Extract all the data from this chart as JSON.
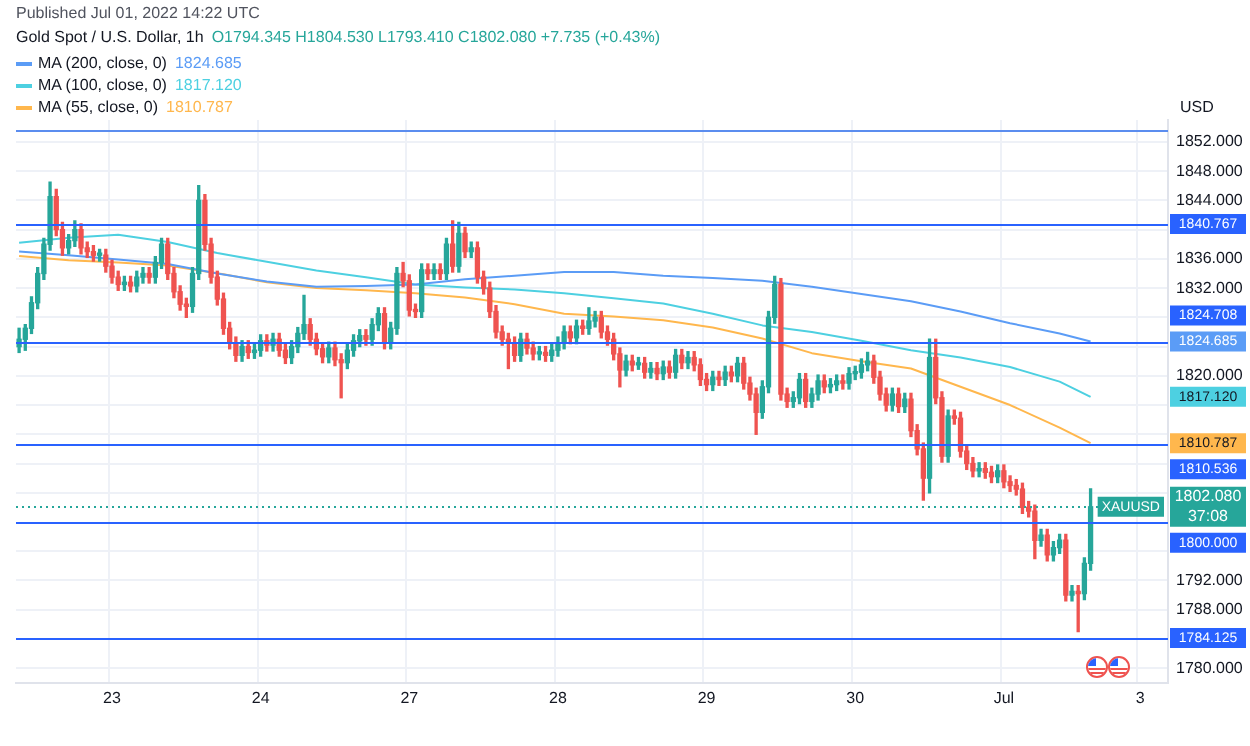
{
  "chart_data": {
    "type": "candlestick",
    "title": "Gold Spot / U.S. Dollar, 1h",
    "subtitle": "Published Jul 01, 2022 14:22 UTC",
    "ylabel": "USD",
    "annotations": [
      "O1794.345 H1804.530 L1793.410 C1802.080 +7.735 (+0.43%)",
      {
        "text": "XAUUSD",
        "y": 1802.08
      },
      {
        "text": "37:08",
        "y": 1802.08
      },
      "1824.685",
      "1817.120",
      "1810.787"
    ],
    "categories": [
      null,
      null,
      null,
      null,
      null,
      null,
      null,
      null,
      null,
      null,
      null,
      null,
      null,
      null,
      null,
      "23",
      null,
      null,
      null,
      null,
      null,
      null,
      null,
      null,
      null,
      null,
      null,
      null,
      null,
      null,
      null,
      null,
      null,
      null,
      null,
      null,
      null,
      null,
      null,
      "24",
      null,
      null,
      null,
      null,
      null,
      null,
      null,
      null,
      null,
      null,
      null,
      null,
      null,
      null,
      null,
      null,
      null,
      null,
      null,
      null,
      null,
      null,
      null,
      "27",
      null,
      null,
      null,
      null,
      null,
      null,
      null,
      null,
      null,
      null,
      null,
      null,
      null,
      null,
      null,
      null,
      null,
      null,
      null,
      null,
      null,
      null,
      null,
      "28",
      null,
      null,
      null,
      null,
      null,
      null,
      null,
      null,
      null,
      null,
      null,
      null,
      null,
      null,
      null,
      null,
      null,
      null,
      null,
      null,
      null,
      null,
      null,
      "29",
      null,
      null,
      null,
      null,
      null,
      null,
      null,
      null,
      null,
      null,
      null,
      null,
      null,
      null,
      null,
      null,
      null,
      null,
      null,
      null,
      null,
      null,
      null,
      "30",
      null,
      null,
      null,
      null,
      null,
      null,
      null,
      null,
      null,
      null,
      null,
      null,
      null,
      null,
      null,
      null,
      null,
      null,
      null,
      null,
      null,
      null,
      null,
      "Jul",
      null,
      null,
      null,
      null,
      null,
      null,
      null,
      null,
      null,
      null,
      null,
      null,
      null,
      null,
      null,
      null,
      null,
      null,
      null,
      null,
      null,
      "3",
      null,
      null,
      null,
      null
    ],
    "colors": [
      "#26a69a",
      "#26a69a",
      "#26a69a",
      "#26a69a",
      "#26a69a",
      "#26a69a",
      "#ef5350",
      "#ef5350",
      "#26a69a",
      "#26a69a",
      "#ef5350",
      "#ef5350",
      "#ef5350",
      "#26a69a",
      "#ef5350",
      "#ef5350",
      "#ef5350",
      "#26a69a",
      "#ef5350",
      "#26a69a",
      "#26a69a",
      "#ef5350",
      "#26a69a",
      "#26a69a",
      "#ef5350",
      "#ef5350",
      "#ef5350",
      "#ef5350",
      "#26a69a",
      "#26a69a",
      "#ef5350",
      "#ef5350",
      "#ef5350",
      "#ef5350",
      "#ef5350",
      "#ef5350",
      "#26a69a",
      "#ef5350",
      "#26a69a",
      "#26a69a",
      "#ef5350",
      "#26a69a",
      "#ef5350",
      "#ef5350",
      "#26a69a",
      "#26a69a",
      "#26a69a",
      "#ef5350",
      "#ef5350",
      "#ef5350",
      "#26a69a",
      "#ef5350",
      "#ef5350",
      "#26a69a",
      "#26a69a",
      "#26a69a",
      "#ef5350",
      "#26a69a",
      "#26a69a",
      "#ef5350",
      "#26a69a",
      "#26a69a",
      "#ef5350",
      "#ef5350",
      "#ef5350",
      "#26a69a",
      "#ef5350",
      "#26a69a",
      "#ef5350",
      "#26a69a",
      "#ef5350",
      "#26a69a",
      "#ef5350",
      "#26a69a",
      "#ef5350",
      "#ef5350",
      "#ef5350",
      "#ef5350",
      "#ef5350",
      "#ef5350",
      "#ef5350",
      "#26a69a",
      "#ef5350",
      "#ef5350",
      "#26a69a",
      "#ef5350",
      "#26a69a",
      "#26a69a",
      "#26a69a",
      "#ef5350",
      "#26a69a",
      "#ef5350",
      "#26a69a",
      "#26a69a",
      "#ef5350",
      "#ef5350",
      "#ef5350",
      "#ef5350",
      "#26a69a",
      "#ef5350",
      "#26a69a",
      "#ef5350",
      "#26a69a",
      "#ef5350",
      "#26a69a",
      "#ef5350",
      "#26a69a",
      "#ef5350",
      "#26a69a",
      "#ef5350",
      "#ef5350",
      "#ef5350",
      "#26a69a",
      "#ef5350",
      "#26a69a",
      "#ef5350",
      "#26a69a",
      "#ef5350",
      "#ef5350",
      "#ef5350",
      "#26a69a",
      "#26a69a",
      "#26a69a",
      "#ef5350",
      "#ef5350",
      "#26a69a",
      "#26a69a",
      "#ef5350",
      "#26a69a",
      "#26a69a",
      "#ef5350",
      "#26a69a",
      "#26a69a",
      "#ef5350",
      "#26a69a",
      "#26a69a",
      "#26a69a",
      "#26a69a",
      "#ef5350",
      "#ef5350",
      "#ef5350",
      "#26a69a",
      "#ef5350",
      "#26a69a",
      "#ef5350",
      "#ef5350",
      "#ef5350",
      "#26a69a",
      "#ef5350",
      "#ef5350",
      "#26a69a",
      "#ef5350",
      "#ef5350",
      "#ef5350",
      "#ef5350",
      "#26a69a",
      "#ef5350",
      "#ef5350",
      "#26a69a",
      "#ef5350",
      "#ef5350",
      "#ef5350",
      "#ef5350",
      "#ef5350",
      "#ef5350",
      "#26a69a",
      "#ef5350",
      "#26a69a",
      "#26a69a",
      "#ef5350",
      "#26a69a",
      "#ef5350",
      "#26a69a",
      "#26a69a",
      null,
      null,
      null,
      null,
      null,
      null,
      null,
      null,
      null,
      null,
      null,
      null
    ],
    "ohlc": [
      [
        1824,
        1826.5,
        1823.2,
        1825
      ],
      [
        1825,
        1827,
        1823.5,
        1826.5
      ],
      [
        1826.5,
        1830.8,
        1825.8,
        1830
      ],
      [
        1830,
        1834.8,
        1829.2,
        1834
      ],
      [
        1834,
        1838.8,
        1833.2,
        1838
      ],
      [
        1838,
        1846.5,
        1837.2,
        1844.5
      ],
      [
        1844.5,
        1845.5,
        1839.2,
        1840
      ],
      [
        1840,
        1841,
        1836.5,
        1837.5
      ],
      [
        1837.5,
        1839.3,
        1836.7,
        1838.5
      ],
      [
        1838.5,
        1841.2,
        1837.7,
        1840
      ],
      [
        1840,
        1840.8,
        1836.7,
        1837.5
      ],
      [
        1837.5,
        1838.3,
        1836.2,
        1837
      ],
      [
        1837,
        1837.8,
        1835.7,
        1836.5
      ],
      [
        1836.5,
        1837.3,
        1835.7,
        1836.5
      ],
      [
        1836.5,
        1837.3,
        1834.2,
        1835
      ],
      [
        1835,
        1835.8,
        1832.7,
        1833.5
      ],
      [
        1833.5,
        1834.3,
        1831.7,
        1832.5
      ],
      [
        1832.5,
        1833.6,
        1831.7,
        1832.8
      ],
      [
        1832.8,
        1833.6,
        1831.5,
        1832.3
      ],
      [
        1832.3,
        1834.3,
        1831.5,
        1833.5
      ],
      [
        1833.5,
        1834.8,
        1832.7,
        1834
      ],
      [
        1834,
        1834.8,
        1832.7,
        1833.5
      ],
      [
        1833.5,
        1836.3,
        1832.7,
        1835.5
      ],
      [
        1835.5,
        1838.8,
        1834.7,
        1838
      ],
      [
        1838,
        1838.8,
        1833.2,
        1834
      ],
      [
        1834,
        1834.8,
        1830.7,
        1831.5
      ],
      [
        1831.5,
        1832.3,
        1829,
        1829.8
      ],
      [
        1829.8,
        1830.6,
        1828,
        1829.5
      ],
      [
        1829.5,
        1834.8,
        1828.7,
        1834
      ],
      [
        1834,
        1846,
        1833.2,
        1844
      ],
      [
        1844,
        1844.8,
        1837.2,
        1838
      ],
      [
        1838,
        1838.8,
        1832.7,
        1833.5
      ],
      [
        1833.5,
        1834.3,
        1829.7,
        1830.5
      ],
      [
        1830.5,
        1831.3,
        1825.7,
        1826.5
      ],
      [
        1826.5,
        1827.3,
        1823.7,
        1824.5
      ],
      [
        1824.5,
        1825.3,
        1822,
        1822.8
      ],
      [
        1822.8,
        1824.8,
        1822,
        1824
      ],
      [
        1824,
        1824.8,
        1822.4,
        1823.2
      ],
      [
        1823.2,
        1824.3,
        1822.4,
        1823.5
      ],
      [
        1823.5,
        1825.6,
        1822.7,
        1824.8
      ],
      [
        1824.8,
        1825.6,
        1823.4,
        1824.2
      ],
      [
        1824.2,
        1825.8,
        1823.4,
        1825
      ],
      [
        1825,
        1825.8,
        1822.7,
        1823.5
      ],
      [
        1823.5,
        1824.3,
        1821.7,
        1822.5
      ],
      [
        1822.5,
        1824.8,
        1821.7,
        1824
      ],
      [
        1824,
        1826.6,
        1823.2,
        1825.8
      ],
      [
        1825.8,
        1831,
        1825,
        1827
      ],
      [
        1827,
        1827.8,
        1824.2,
        1825
      ],
      [
        1825,
        1825.8,
        1822.9,
        1823.7
      ],
      [
        1823.7,
        1824.5,
        1821.8,
        1822.6
      ],
      [
        1822.6,
        1824.6,
        1821.8,
        1823.8
      ],
      [
        1823.8,
        1824.6,
        1821.4,
        1822.2
      ],
      [
        1822.2,
        1823,
        1817,
        1821.8
      ],
      [
        1821.8,
        1824.3,
        1821,
        1823.5
      ],
      [
        1823.5,
        1825.6,
        1822.7,
        1824.8
      ],
      [
        1824.8,
        1826.3,
        1824,
        1825.5
      ],
      [
        1825.5,
        1826.3,
        1824.2,
        1825
      ],
      [
        1825,
        1827.8,
        1824.2,
        1827
      ],
      [
        1827,
        1829.3,
        1826.2,
        1828.5
      ],
      [
        1828.5,
        1829.3,
        1823.7,
        1824.5
      ],
      [
        1824.5,
        1827.3,
        1823.7,
        1826.5
      ],
      [
        1826.5,
        1834.8,
        1825.7,
        1834
      ],
      [
        1834,
        1835.5,
        1832.2,
        1833
      ],
      [
        1833,
        1833.8,
        1828.2,
        1829
      ],
      [
        1829,
        1829.8,
        1828,
        1828.8
      ],
      [
        1828.8,
        1835.3,
        1828,
        1834.5
      ],
      [
        1834.5,
        1835.3,
        1833.2,
        1834
      ],
      [
        1834,
        1835.3,
        1833.2,
        1834.5
      ],
      [
        1834.5,
        1835.3,
        1833.2,
        1834
      ],
      [
        1834,
        1838.8,
        1833.2,
        1838
      ],
      [
        1838,
        1841.2,
        1834.2,
        1835
      ],
      [
        1835,
        1841,
        1834.2,
        1839.5
      ],
      [
        1839.5,
        1840.3,
        1836.2,
        1837
      ],
      [
        1837,
        1838.3,
        1836.2,
        1837.5
      ],
      [
        1837.5,
        1838.3,
        1832.7,
        1833.5
      ],
      [
        1833.5,
        1834.3,
        1831.2,
        1832
      ],
      [
        1832,
        1832.8,
        1828,
        1828.8
      ],
      [
        1828.8,
        1829.6,
        1825.2,
        1826
      ],
      [
        1826,
        1826.8,
        1824.2,
        1825
      ],
      [
        1825,
        1825.8,
        1821,
        1824.5
      ],
      [
        1824.5,
        1825.3,
        1822,
        1822.8
      ],
      [
        1822.8,
        1825.8,
        1822,
        1825
      ],
      [
        1825,
        1825.8,
        1823,
        1823.8
      ],
      [
        1823.8,
        1824.6,
        1822.2,
        1823
      ],
      [
        1823,
        1824,
        1822.2,
        1823.2
      ],
      [
        1823.2,
        1824,
        1822,
        1822.8
      ],
      [
        1822.8,
        1824.3,
        1822,
        1823.5
      ],
      [
        1823.5,
        1825.3,
        1822.7,
        1824.5
      ],
      [
        1824.5,
        1826.8,
        1823.7,
        1826
      ],
      [
        1826,
        1826.8,
        1824.4,
        1825.2
      ],
      [
        1825.2,
        1827.6,
        1824.4,
        1826.8
      ],
      [
        1826.8,
        1827.6,
        1825.7,
        1826.5
      ],
      [
        1826.5,
        1829.3,
        1825.7,
        1827.5
      ],
      [
        1827.5,
        1828.8,
        1826.7,
        1828
      ],
      [
        1828,
        1828.8,
        1825.2,
        1826
      ],
      [
        1826,
        1826.8,
        1824.2,
        1825
      ],
      [
        1825,
        1825.8,
        1822.2,
        1823
      ],
      [
        1823,
        1823.8,
        1818.5,
        1820.8
      ],
      [
        1820.8,
        1822.8,
        1820,
        1822
      ],
      [
        1822,
        1822.8,
        1820.7,
        1821.5
      ],
      [
        1821.5,
        1822.5,
        1820.9,
        1821.7
      ],
      [
        1821.7,
        1822.5,
        1819.7,
        1820.5
      ],
      [
        1820.5,
        1821.8,
        1819.7,
        1821
      ],
      [
        1821,
        1821.8,
        1819.5,
        1820.3
      ],
      [
        1820.3,
        1822,
        1819.5,
        1821.2
      ],
      [
        1821.2,
        1822,
        1819.7,
        1820.5
      ],
      [
        1820.5,
        1823.6,
        1819.7,
        1822.8
      ],
      [
        1822.8,
        1823.6,
        1821,
        1821.8
      ],
      [
        1821.8,
        1823.3,
        1821,
        1822.5
      ],
      [
        1822.5,
        1823.3,
        1820.7,
        1821.5
      ],
      [
        1821.5,
        1822.3,
        1818.7,
        1819.5
      ],
      [
        1819.5,
        1820.3,
        1818,
        1818.8
      ],
      [
        1818.8,
        1820.6,
        1818,
        1819.8
      ],
      [
        1819.8,
        1820.6,
        1818.7,
        1819.5
      ],
      [
        1819.5,
        1821.3,
        1818.7,
        1820.5
      ],
      [
        1820.5,
        1821.3,
        1819.2,
        1820
      ],
      [
        1820,
        1822.5,
        1819.2,
        1821.7
      ],
      [
        1821.7,
        1822.5,
        1818.2,
        1819
      ],
      [
        1819,
        1819.8,
        1816.7,
        1817.5
      ],
      [
        1817.5,
        1818.3,
        1812,
        1815
      ],
      [
        1815,
        1819.3,
        1814.2,
        1818.5
      ],
      [
        1818.5,
        1828.8,
        1817.7,
        1828
      ],
      [
        1828,
        1833.6,
        1827.2,
        1832.5
      ],
      [
        1832.5,
        1833.3,
        1816.7,
        1817.5
      ],
      [
        1817.5,
        1818.3,
        1815.7,
        1816.5
      ],
      [
        1816.5,
        1817.8,
        1815.7,
        1817
      ],
      [
        1817,
        1820.3,
        1816.2,
        1819.5
      ],
      [
        1819.5,
        1820.3,
        1815.7,
        1816.5
      ],
      [
        1816.5,
        1818.3,
        1815.7,
        1817.5
      ],
      [
        1817.5,
        1820.1,
        1816.7,
        1819.3
      ],
      [
        1819.3,
        1820.1,
        1817.7,
        1818.5
      ],
      [
        1818.5,
        1819.6,
        1817.7,
        1818.8
      ],
      [
        1818.8,
        1820.1,
        1818,
        1819.3
      ],
      [
        1819.3,
        1820.1,
        1818.2,
        1819
      ],
      [
        1819,
        1821.1,
        1818.2,
        1820.3
      ],
      [
        1820.3,
        1821.3,
        1819.5,
        1820.5
      ],
      [
        1820.5,
        1822.3,
        1819.7,
        1821.5
      ],
      [
        1821.5,
        1823.2,
        1820.7,
        1822
      ],
      [
        1822,
        1822.8,
        1819,
        1819.8
      ],
      [
        1819.8,
        1820.6,
        1816.7,
        1817.5
      ],
      [
        1817.5,
        1818.3,
        1815.2,
        1816
      ],
      [
        1816,
        1818.3,
        1815.2,
        1817.5
      ],
      [
        1817.5,
        1818.3,
        1815,
        1815.8
      ],
      [
        1815.8,
        1817.6,
        1815,
        1816.8
      ],
      [
        1816.8,
        1817.6,
        1811.7,
        1812.5
      ],
      [
        1812.5,
        1813.3,
        1809.2,
        1810
      ],
      [
        1810,
        1810.8,
        1803,
        1806
      ],
      [
        1806,
        1825,
        1804,
        1822.5
      ],
      [
        1822.5,
        1825,
        1816.2,
        1817
      ],
      [
        1817,
        1817.8,
        1808.2,
        1809
      ],
      [
        1809,
        1815.3,
        1808.2,
        1814.5
      ],
      [
        1814.5,
        1815.3,
        1813.4,
        1814.2
      ],
      [
        1814.2,
        1815,
        1808.9,
        1809.7
      ],
      [
        1809.7,
        1810.5,
        1807.2,
        1808
      ],
      [
        1808,
        1808.8,
        1806.2,
        1807
      ],
      [
        1807,
        1808.1,
        1806.2,
        1807.3
      ],
      [
        1807.3,
        1808.1,
        1806,
        1806.8
      ],
      [
        1806.8,
        1807.6,
        1805.4,
        1806.2
      ],
      [
        1806.2,
        1807.8,
        1805.4,
        1807
      ],
      [
        1807,
        1807.8,
        1804.7,
        1805.5
      ],
      [
        1805.5,
        1806.3,
        1804.2,
        1805
      ],
      [
        1805,
        1805.8,
        1803.7,
        1804.5
      ],
      [
        1804.5,
        1805.3,
        1801.2,
        1802
      ],
      [
        1802,
        1802.8,
        1800.7,
        1801.5
      ],
      [
        1801.5,
        1802.3,
        1795,
        1797.5
      ],
      [
        1797.5,
        1799,
        1796.7,
        1798.2
      ],
      [
        1798.2,
        1799,
        1794.7,
        1795.5
      ],
      [
        1795.5,
        1797.3,
        1794.7,
        1796.5
      ],
      [
        1796.5,
        1798.3,
        1795.7,
        1797.5
      ],
      [
        1797.5,
        1798.3,
        1789.2,
        1790
      ],
      [
        1790,
        1791.3,
        1789.2,
        1790.5
      ],
      [
        1790.5,
        1791.3,
        1785,
        1790.2
      ],
      [
        1790.2,
        1795.1,
        1789.4,
        1794.345
      ],
      [
        1794.345,
        1804.53,
        1793.41,
        1802.08
      ],
      null,
      null,
      null,
      null,
      null,
      null,
      null,
      null,
      null,
      null,
      null,
      null
    ],
    "series": [
      {
        "type": "line",
        "name": "MA (200, close, 0)",
        "color": "#5b9cf6",
        "values": [
          1837,
          null,
          null,
          null,
          null,
          null,
          null,
          null,
          1836.5,
          null,
          null,
          null,
          null,
          null,
          null,
          null,
          1835.9,
          null,
          null,
          null,
          null,
          null,
          null,
          null,
          1835.3,
          null,
          null,
          null,
          null,
          null,
          null,
          null,
          1834,
          null,
          null,
          null,
          null,
          null,
          null,
          null,
          1832.9,
          null,
          null,
          null,
          null,
          null,
          null,
          null,
          1832.2,
          null,
          null,
          null,
          null,
          null,
          null,
          null,
          1832.3,
          null,
          null,
          null,
          null,
          null,
          null,
          null,
          1832.5,
          null,
          null,
          null,
          null,
          null,
          null,
          null,
          1833.2,
          null,
          null,
          null,
          null,
          null,
          null,
          null,
          1833.7,
          null,
          null,
          null,
          null,
          null,
          null,
          null,
          1834.2,
          null,
          null,
          null,
          null,
          null,
          null,
          null,
          1834.2,
          null,
          null,
          null,
          null,
          null,
          null,
          null,
          1833.7,
          null,
          null,
          null,
          null,
          null,
          null,
          null,
          1833.4,
          null,
          null,
          null,
          null,
          null,
          null,
          null,
          1833,
          null,
          null,
          null,
          null,
          null,
          null,
          null,
          1832.2,
          null,
          null,
          null,
          null,
          null,
          null,
          null,
          1831.2,
          null,
          null,
          null,
          null,
          null,
          null,
          null,
          1830.2,
          null,
          null,
          null,
          null,
          null,
          null,
          null,
          1828.8,
          null,
          null,
          null,
          null,
          null,
          null,
          null,
          1827.2,
          null,
          null,
          null,
          null,
          null,
          null,
          null,
          1825.8,
          null,
          null,
          null,
          null,
          1824.685,
          null,
          null,
          null,
          null,
          null,
          null,
          null,
          null,
          null,
          null,
          null,
          null
        ]
      },
      {
        "type": "line",
        "name": "MA (100, close, 0)",
        "color": "#4dd0e1",
        "values": [
          1838.2,
          null,
          null,
          null,
          null,
          null,
          null,
          null,
          1838.9,
          null,
          null,
          null,
          null,
          null,
          null,
          null,
          1839.3,
          null,
          null,
          null,
          null,
          null,
          null,
          null,
          1838.3,
          null,
          null,
          null,
          null,
          null,
          null,
          null,
          1836.8,
          null,
          null,
          null,
          null,
          null,
          null,
          null,
          1835.6,
          null,
          null,
          null,
          null,
          null,
          null,
          null,
          1834.4,
          null,
          null,
          null,
          null,
          null,
          null,
          null,
          1833.5,
          null,
          null,
          null,
          null,
          null,
          null,
          null,
          1832.5,
          null,
          null,
          null,
          null,
          null,
          null,
          null,
          1832.1,
          null,
          null,
          null,
          null,
          null,
          null,
          null,
          1831.8,
          null,
          null,
          null,
          null,
          null,
          null,
          null,
          1831.3,
          null,
          null,
          null,
          null,
          null,
          null,
          null,
          1830.6,
          null,
          null,
          null,
          null,
          null,
          null,
          null,
          1829.9,
          null,
          null,
          null,
          null,
          null,
          null,
          null,
          1828.5,
          null,
          null,
          null,
          null,
          null,
          null,
          null,
          1826.9,
          null,
          null,
          null,
          null,
          null,
          null,
          null,
          1826,
          null,
          null,
          null,
          null,
          null,
          null,
          null,
          1824.8,
          null,
          null,
          null,
          null,
          null,
          null,
          null,
          1823.5,
          null,
          null,
          null,
          null,
          null,
          null,
          null,
          1822.5,
          null,
          null,
          null,
          null,
          null,
          null,
          null,
          1821.2,
          null,
          null,
          null,
          null,
          null,
          null,
          null,
          1819.2,
          null,
          null,
          null,
          null,
          1817.12,
          null,
          null,
          null,
          null,
          null,
          null,
          null,
          null,
          null,
          null,
          null,
          null
        ]
      },
      {
        "type": "line",
        "name": "MA (55, close, 0)",
        "color": "#ffb74d",
        "values": [
          1836.4,
          null,
          null,
          null,
          null,
          null,
          null,
          null,
          1835.8,
          null,
          null,
          null,
          null,
          null,
          null,
          null,
          1835.5,
          null,
          null,
          null,
          null,
          null,
          null,
          null,
          1835.1,
          null,
          null,
          null,
          null,
          null,
          null,
          null,
          null,
          1833.9,
          null,
          null,
          null,
          null,
          null,
          null,
          1832.8,
          null,
          null,
          null,
          null,
          null,
          null,
          null,
          1832,
          null,
          null,
          null,
          null,
          null,
          null,
          null,
          1831.7,
          null,
          null,
          null,
          null,
          null,
          null,
          null,
          1831.3,
          null,
          null,
          null,
          null,
          null,
          null,
          null,
          1830.7,
          null,
          null,
          null,
          null,
          null,
          null,
          null,
          1829.8,
          null,
          null,
          null,
          null,
          null,
          null,
          null,
          1828.5,
          null,
          null,
          null,
          null,
          null,
          null,
          null,
          1828.1,
          null,
          null,
          null,
          null,
          null,
          null,
          null,
          1827.6,
          null,
          null,
          null,
          null,
          null,
          null,
          null,
          1826.6,
          null,
          null,
          null,
          null,
          null,
          null,
          null,
          1825.1,
          null,
          null,
          null,
          null,
          null,
          null,
          null,
          1823.1,
          null,
          null,
          null,
          null,
          null,
          null,
          null,
          1822,
          null,
          null,
          null,
          null,
          null,
          null,
          null,
          1821,
          null,
          null,
          null,
          null,
          null,
          null,
          null,
          1818.5,
          null,
          null,
          null,
          null,
          null,
          null,
          null,
          1816,
          null,
          null,
          null,
          null,
          null,
          null,
          null,
          1812.9,
          null,
          null,
          null,
          null,
          1810.787,
          null,
          null,
          null,
          null,
          null,
          null,
          null,
          null,
          null,
          null,
          null,
          null
        ]
      }
    ],
    "ylim": [
      1778,
      1855
    ],
    "yticks": [
      {
        "value": 1780,
        "label": "1780.000"
      },
      {
        "value": 1788,
        "label": "1788.000"
      },
      {
        "value": 1792,
        "label": "1792.000"
      },
      {
        "value": 1796,
        "label": null
      },
      {
        "value": 1804,
        "label": null
      },
      {
        "value": 1808,
        "label": null
      },
      {
        "value": 1812,
        "label": null
      },
      {
        "value": 1816,
        "label": null
      },
      {
        "value": 1820,
        "label": "1820.000"
      },
      {
        "value": 1824,
        "label": null
      },
      {
        "value": 1828,
        "label": null
      },
      {
        "value": 1832,
        "label": "1832.000"
      },
      {
        "value": 1836,
        "label": "1836.000"
      },
      {
        "value": 1840,
        "label": null
      },
      {
        "value": 1844,
        "label": "1844.000"
      },
      {
        "value": 1848,
        "label": "1848.000"
      },
      {
        "value": 1852,
        "label": "1852.000"
      }
    ],
    "ref_lines": [
      {
        "axis": "y",
        "value": 1853.7,
        "color": "#5b8def"
      },
      {
        "axis": "y",
        "value": 1840.767,
        "label": "1840.767",
        "color": "#2962ff"
      },
      {
        "axis": "y",
        "value": 1824.708,
        "label": "1824.708",
        "color": "#2962ff"
      },
      {
        "axis": "y",
        "value": 1810.536,
        "label": "1810.536",
        "color": "#2962ff"
      },
      {
        "axis": "y",
        "value": 1802.08,
        "label": "1802.080",
        "color": "#26a69a",
        "line_style": "dotted"
      },
      {
        "axis": "y",
        "value": 1800,
        "label": "1800.000",
        "color": "#2962ff"
      },
      {
        "axis": "y",
        "value": 1784.125,
        "label": "1784.125",
        "color": "#2962ff"
      }
    ],
    "grid": true,
    "legend": "top left"
  }
}
